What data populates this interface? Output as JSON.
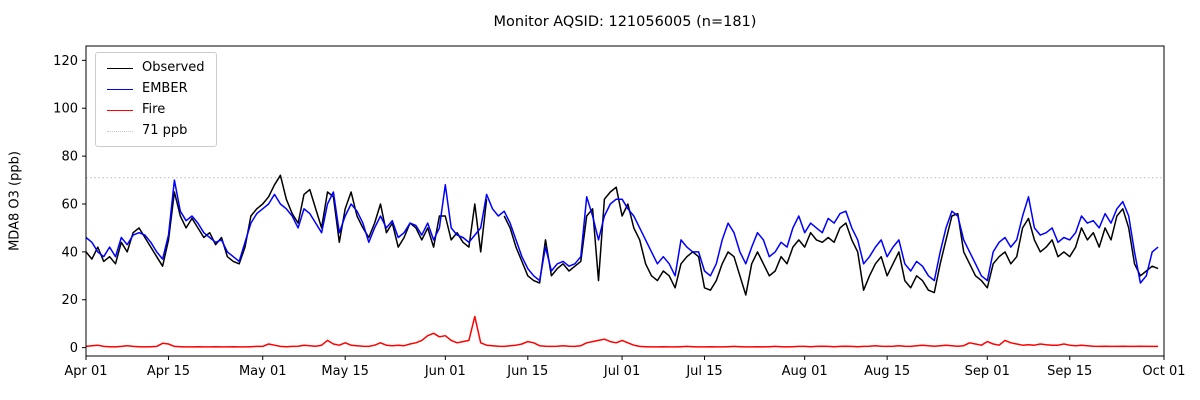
{
  "figure": {
    "title": "Monitor AQSID: 121056005 (n=181)",
    "ylabel": "MDA8 O3 (ppb)"
  },
  "chart_data": {
    "type": "line",
    "title": "Monitor AQSID: 121056005 (n=181)",
    "xlabel": "",
    "ylabel": "MDA8 O3 (ppb)",
    "x_description": "daily values, index 0 = Apr 01, index 182 = Sep 30 (nulls = missing observations)",
    "xlim": [
      0,
      183
    ],
    "ylim": [
      -3.5,
      126
    ],
    "grid": false,
    "legend_position": "upper-left",
    "yticks": [
      0,
      20,
      40,
      60,
      80,
      100,
      120
    ],
    "xticks": [
      {
        "day": 0,
        "label": "Apr 01"
      },
      {
        "day": 14,
        "label": "Apr 15"
      },
      {
        "day": 30,
        "label": "May 01"
      },
      {
        "day": 44,
        "label": "May 15"
      },
      {
        "day": 61,
        "label": "Jun 01"
      },
      {
        "day": 75,
        "label": "Jun 15"
      },
      {
        "day": 91,
        "label": "Jul 01"
      },
      {
        "day": 105,
        "label": "Jul 15"
      },
      {
        "day": 122,
        "label": "Aug 01"
      },
      {
        "day": 136,
        "label": "Aug 15"
      },
      {
        "day": 153,
        "label": "Sep 01"
      },
      {
        "day": 167,
        "label": "Sep 15"
      },
      {
        "day": 183,
        "label": "Oct 01"
      }
    ],
    "threshold": {
      "label": "71 ppb",
      "value": 71,
      "color": "#c9c9c9",
      "style": "dotted"
    },
    "legend": [
      {
        "label": "Observed",
        "color": "#000000",
        "style": "solid"
      },
      {
        "label": "EMBER",
        "color": "#0000ff",
        "style": "solid"
      },
      {
        "label": "Fire",
        "color": "#ff0000",
        "style": "solid"
      },
      {
        "label": "71 ppb",
        "color": "#c9c9c9",
        "style": "dotted"
      }
    ],
    "series": [
      {
        "name": "Observed",
        "color": "#000000",
        "values": [
          40,
          37,
          42,
          36,
          38,
          35,
          44,
          40,
          48,
          50,
          46,
          42,
          38,
          34,
          45,
          65,
          55,
          50,
          54,
          50,
          46,
          48,
          43,
          46,
          38,
          36,
          35,
          42,
          55,
          58,
          60,
          63,
          68,
          72,
          62,
          56,
          52,
          64,
          66,
          58,
          50,
          65,
          63,
          44,
          58,
          65,
          55,
          50,
          46,
          52,
          60,
          48,
          52,
          42,
          46,
          52,
          50,
          45,
          50,
          42,
          55,
          55,
          45,
          48,
          44,
          42,
          60,
          40,
          62,
          null,
          null,
          55,
          50,
          42,
          36,
          30,
          28,
          27,
          45,
          30,
          33,
          35,
          32,
          34,
          36,
          55,
          58,
          28,
          62,
          65,
          67,
          55,
          60,
          50,
          45,
          35,
          30,
          28,
          32,
          30,
          25,
          35,
          38,
          40,
          38,
          25,
          24,
          28,
          35,
          40,
          38,
          30,
          22,
          35,
          40,
          35,
          30,
          32,
          38,
          35,
          42,
          45,
          42,
          48,
          45,
          44,
          46,
          44,
          50,
          52,
          45,
          40,
          24,
          30,
          35,
          38,
          30,
          35,
          40,
          28,
          25,
          30,
          28,
          24,
          23,
          35,
          45,
          55,
          56,
          40,
          35,
          30,
          28,
          25,
          35,
          38,
          40,
          35,
          38,
          50,
          54,
          45,
          40,
          42,
          45,
          38,
          40,
          38,
          42,
          50,
          45,
          48,
          42,
          50,
          45,
          55,
          58,
          50,
          35,
          30,
          32,
          34,
          33
        ]
      },
      {
        "name": "EMBER",
        "color": "#0000ff",
        "values": [
          46,
          44,
          40,
          38,
          42,
          38,
          46,
          43,
          47,
          48,
          47,
          44,
          40,
          37,
          47,
          70,
          57,
          53,
          55,
          52,
          48,
          46,
          44,
          45,
          40,
          38,
          36,
          44,
          52,
          56,
          58,
          60,
          64,
          60,
          58,
          55,
          50,
          58,
          56,
          52,
          48,
          60,
          65,
          48,
          55,
          60,
          57,
          52,
          44,
          50,
          55,
          50,
          53,
          46,
          48,
          52,
          51,
          47,
          52,
          45,
          50,
          68,
          50,
          47,
          46,
          44,
          47,
          50,
          64,
          58,
          55,
          57,
          52,
          45,
          38,
          33,
          30,
          28,
          42,
          32,
          35,
          36,
          34,
          35,
          38,
          63,
          55,
          45,
          55,
          60,
          62,
          62,
          58,
          55,
          50,
          45,
          40,
          35,
          38,
          35,
          30,
          45,
          42,
          40,
          40,
          32,
          30,
          35,
          45,
          52,
          48,
          40,
          35,
          42,
          48,
          45,
          38,
          40,
          44,
          42,
          50,
          55,
          48,
          52,
          50,
          48,
          54,
          52,
          56,
          57,
          50,
          45,
          35,
          38,
          42,
          45,
          38,
          42,
          45,
          35,
          32,
          36,
          34,
          30,
          28,
          40,
          50,
          57,
          55,
          45,
          40,
          35,
          30,
          28,
          40,
          44,
          46,
          42,
          45,
          55,
          63,
          50,
          47,
          48,
          50,
          44,
          46,
          45,
          48,
          55,
          52,
          53,
          50,
          56,
          52,
          58,
          61,
          55,
          40,
          27,
          30,
          40,
          42
        ]
      },
      {
        "name": "Fire",
        "color": "#ff0000",
        "values": [
          0.5,
          0.8,
          1,
          0.5,
          0.4,
          0.3,
          0.5,
          0.8,
          0.5,
          0.4,
          0.3,
          0.4,
          0.5,
          1.8,
          1.5,
          0.5,
          0.4,
          0.3,
          0.3,
          0.4,
          0.3,
          0.3,
          0.4,
          0.3,
          0.3,
          0.4,
          0.3,
          0.3,
          0.4,
          0.5,
          0.5,
          1.5,
          1,
          0.5,
          0.4,
          0.5,
          0.6,
          1,
          0.8,
          0.6,
          1,
          3,
          1.5,
          1,
          2,
          1,
          0.8,
          0.6,
          0.5,
          1,
          2,
          1,
          0.8,
          1,
          0.8,
          1.5,
          2,
          3,
          5,
          6,
          4.5,
          5,
          3,
          2,
          2.5,
          3,
          13,
          2,
          1,
          0.8,
          0.6,
          0.5,
          0.8,
          1,
          1.5,
          2.5,
          2,
          0.8,
          0.6,
          0.5,
          0.6,
          0.8,
          0.6,
          0.5,
          0.8,
          2,
          2.5,
          3,
          3.5,
          2.5,
          2,
          3,
          2,
          1,
          0.5,
          0.4,
          0.3,
          0.3,
          0.4,
          0.3,
          0.3,
          0.4,
          0.5,
          0.4,
          0.3,
          0.3,
          0.4,
          0.3,
          0.3,
          0.4,
          0.5,
          0.4,
          0.3,
          0.3,
          0.4,
          0.3,
          0.4,
          0.5,
          0.4,
          0.3,
          0.4,
          0.5,
          0.5,
          0.4,
          0.5,
          0.6,
          0.5,
          0.4,
          0.5,
          0.6,
          0.5,
          0.4,
          0.5,
          0.6,
          0.8,
          0.6,
          0.5,
          0.6,
          0.8,
          0.6,
          0.5,
          0.8,
          1,
          0.8,
          0.6,
          0.8,
          1,
          0.8,
          0.6,
          0.8,
          2,
          1.5,
          1,
          2.5,
          1.5,
          1,
          3,
          2,
          1.5,
          1,
          1.2,
          1,
          1.5,
          1.2,
          1,
          1,
          1.5,
          1,
          0.8,
          1,
          0.8,
          0.6,
          0.5,
          0.6,
          0.5,
          0.5,
          0.6,
          0.5,
          0.5,
          0.6,
          0.5,
          0.5,
          0.5
        ]
      }
    ]
  }
}
